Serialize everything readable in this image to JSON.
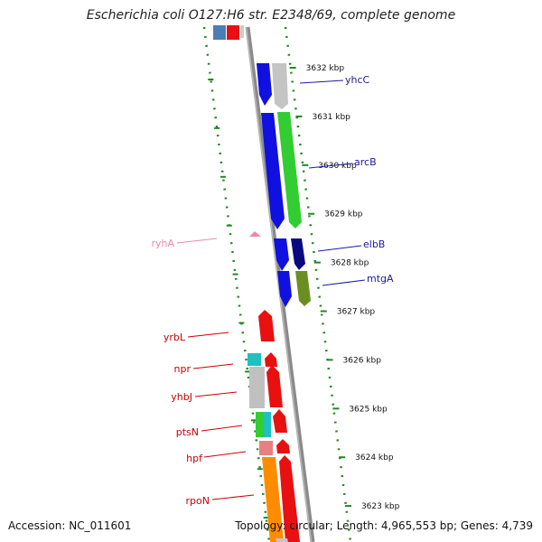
{
  "title": "Escherichia coli O127:H6 str. E2348/69, complete genome",
  "footer": {
    "accession": "Accession: NC_011601",
    "summary": "Topology: circular; Length: 4,965,553 bp; Genes: 4,739"
  },
  "colors": {
    "forward_label": "#cc0000",
    "reverse_label": "#1a1aa0",
    "rna_label": "#ee88aa",
    "tick_green": "#228822",
    "backbone": "#888888"
  },
  "ticks": [
    {
      "label": "3632 kbp"
    },
    {
      "label": "3631 kbp"
    },
    {
      "label": "3630 kbp"
    },
    {
      "label": "3629 kbp"
    },
    {
      "label": "3628 kbp"
    },
    {
      "label": "3627 kbp"
    },
    {
      "label": "3626 kbp"
    },
    {
      "label": "3625 kbp"
    },
    {
      "label": "3624 kbp"
    },
    {
      "label": "3623 kbp"
    }
  ],
  "genes_right": [
    {
      "label": "yhcC"
    },
    {
      "label": "arcB"
    },
    {
      "label": "elbB"
    },
    {
      "label": "mtgA"
    }
  ],
  "genes_left": [
    {
      "label": "ryhA"
    },
    {
      "label": "yrbL"
    },
    {
      "label": "npr"
    },
    {
      "label": "yhbJ"
    },
    {
      "label": "ptsN"
    },
    {
      "label": "hpf"
    },
    {
      "label": "rpoN"
    }
  ]
}
